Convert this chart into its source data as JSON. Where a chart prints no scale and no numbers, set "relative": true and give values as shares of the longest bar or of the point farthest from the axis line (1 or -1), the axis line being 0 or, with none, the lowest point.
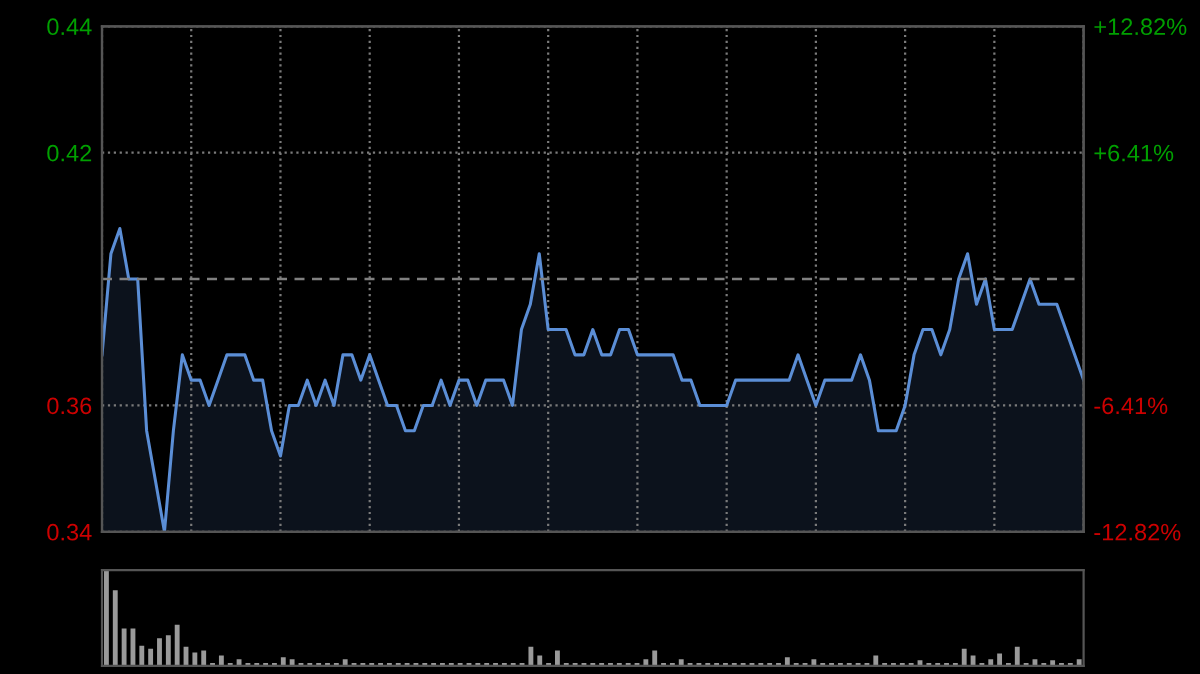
{
  "chart_data": [
    {
      "type": "area",
      "categories": [
        null,
        null,
        null,
        null,
        null,
        null,
        null,
        null,
        null,
        null,
        null,
        null,
        null,
        null,
        null,
        null,
        null,
        null,
        null,
        null,
        null,
        null,
        null,
        null,
        null,
        null,
        null,
        null,
        null,
        null,
        null,
        null,
        null,
        null,
        null,
        null,
        null,
        null,
        null,
        null,
        null,
        null,
        null,
        null,
        null,
        null,
        null,
        null,
        null,
        null,
        null,
        null,
        null,
        null,
        null,
        null,
        null,
        null,
        null,
        null,
        null,
        null,
        null,
        null,
        null,
        null,
        null,
        null,
        null,
        null,
        null,
        null,
        null,
        null,
        null,
        null,
        null,
        null,
        null,
        null,
        null,
        null,
        null,
        null,
        null,
        null,
        null,
        null,
        null,
        null,
        null,
        null,
        null,
        null,
        null,
        null,
        null,
        null,
        null,
        null,
        null,
        null,
        null,
        null,
        null,
        null,
        null,
        null,
        null,
        null,
        null
      ],
      "series": [
        {
          "color": "#5b8ed6",
          "values": [
            0.375,
            0.395,
            0.4,
            0.39,
            0.39,
            0.36,
            0.35,
            0.34,
            0.36,
            0.375,
            0.37,
            0.37,
            0.365,
            0.37,
            0.375,
            0.375,
            0.375,
            0.37,
            0.37,
            0.36,
            0.355,
            0.365,
            0.365,
            0.37,
            0.365,
            0.37,
            0.365,
            0.375,
            0.375,
            0.37,
            0.375,
            0.37,
            0.365,
            0.365,
            0.36,
            0.36,
            0.365,
            0.365,
            0.37,
            0.365,
            0.37,
            0.37,
            0.365,
            0.37,
            0.37,
            0.37,
            0.365,
            0.38,
            0.385,
            0.395,
            0.38,
            0.38,
            0.38,
            0.375,
            0.375,
            0.38,
            0.375,
            0.375,
            0.38,
            0.38,
            0.375,
            0.375,
            0.375,
            0.375,
            0.375,
            0.37,
            0.37,
            0.365,
            0.365,
            0.365,
            0.365,
            0.37,
            0.37,
            0.37,
            0.37,
            0.37,
            0.37,
            0.37,
            0.375,
            0.37,
            0.365,
            0.37,
            0.37,
            0.37,
            0.37,
            0.375,
            0.37,
            0.36,
            0.36,
            0.36,
            0.365,
            0.375,
            0.38,
            0.38,
            0.375,
            0.38,
            0.39,
            0.395,
            0.385,
            0.39,
            0.38,
            0.38,
            0.38,
            0.385,
            0.39,
            0.385,
            0.385,
            0.385,
            0.38,
            0.375,
            0.37
          ]
        }
      ],
      "ylim": [
        0.34,
        0.44
      ],
      "yticks": [
        {
          "value": 0.34,
          "label": "0.34"
        },
        {
          "value": 0.365,
          "label": "0.36"
        },
        {
          "value": 0.415,
          "label": "0.42"
        },
        {
          "value": 0.44,
          "label": "0.44"
        }
      ],
      "y2lim": [
        -12.82,
        12.82
      ],
      "y2ticks": [
        {
          "value": -12.82,
          "label": "-12.82%"
        },
        {
          "value": -6.41,
          "label": "-6.41%"
        },
        {
          "value": 6.41,
          "label": "+6.41%"
        },
        {
          "value": 12.82,
          "label": "+12.82%"
        }
      ],
      "ref_lines": [
        {
          "axis": "y",
          "value": 0.39,
          "color": "#808080",
          "line_style": "dashed"
        }
      ],
      "grid": true,
      "tick_labels": "y"
    },
    {
      "type": "bar",
      "relative": true,
      "color": "#9a9a9a",
      "categories": [
        null,
        null,
        null,
        null,
        null,
        null,
        null,
        null,
        null,
        null,
        null,
        null,
        null,
        null,
        null,
        null,
        null,
        null,
        null,
        null,
        null,
        null,
        null,
        null,
        null,
        null,
        null,
        null,
        null,
        null,
        null,
        null,
        null,
        null,
        null,
        null,
        null,
        null,
        null,
        null,
        null,
        null,
        null,
        null,
        null,
        null,
        null,
        null,
        null,
        null,
        null,
        null,
        null,
        null,
        null,
        null,
        null,
        null,
        null,
        null,
        null,
        null,
        null,
        null,
        null,
        null,
        null,
        null,
        null,
        null,
        null,
        null,
        null,
        null,
        null,
        null,
        null,
        null,
        null,
        null,
        null,
        null,
        null,
        null,
        null,
        null,
        null,
        null,
        null,
        null,
        null,
        null,
        null,
        null,
        null,
        null,
        null,
        null,
        null,
        null,
        null,
        null,
        null,
        null,
        null,
        null,
        null,
        null,
        null,
        null,
        null
      ],
      "values": [
        1.0,
        0.79,
        0.39,
        0.39,
        0.21,
        0.18,
        0.29,
        0.32,
        0.43,
        0.2,
        0.14,
        0.16,
        0.03,
        0.11,
        0.03,
        0.07,
        0.03,
        0.03,
        0.03,
        0.03,
        0.09,
        0.07,
        0.03,
        0.03,
        0.03,
        0.03,
        0.03,
        0.07,
        0.03,
        0.03,
        0.03,
        0.03,
        0.03,
        0.03,
        0.03,
        0.03,
        0.03,
        0.03,
        0.03,
        0.03,
        0.03,
        0.03,
        0.03,
        0.03,
        0.03,
        0.03,
        0.03,
        0.03,
        0.2,
        0.11,
        0.03,
        0.16,
        0.03,
        0.03,
        0.03,
        0.03,
        0.03,
        0.03,
        0.03,
        0.03,
        0.03,
        0.07,
        0.16,
        0.03,
        0.03,
        0.07,
        0.03,
        0.03,
        0.03,
        0.03,
        0.03,
        0.03,
        0.03,
        0.03,
        0.03,
        0.03,
        0.03,
        0.09,
        0.03,
        0.03,
        0.07,
        0.03,
        0.03,
        0.03,
        0.03,
        0.03,
        0.03,
        0.11,
        0.03,
        0.03,
        0.03,
        0.03,
        0.06,
        0.03,
        0.03,
        0.03,
        0.03,
        0.18,
        0.11,
        0.03,
        0.07,
        0.13,
        0.03,
        0.2,
        0.03,
        0.07,
        0.03,
        0.06,
        0.03,
        0.03,
        0.07
      ]
    }
  ]
}
